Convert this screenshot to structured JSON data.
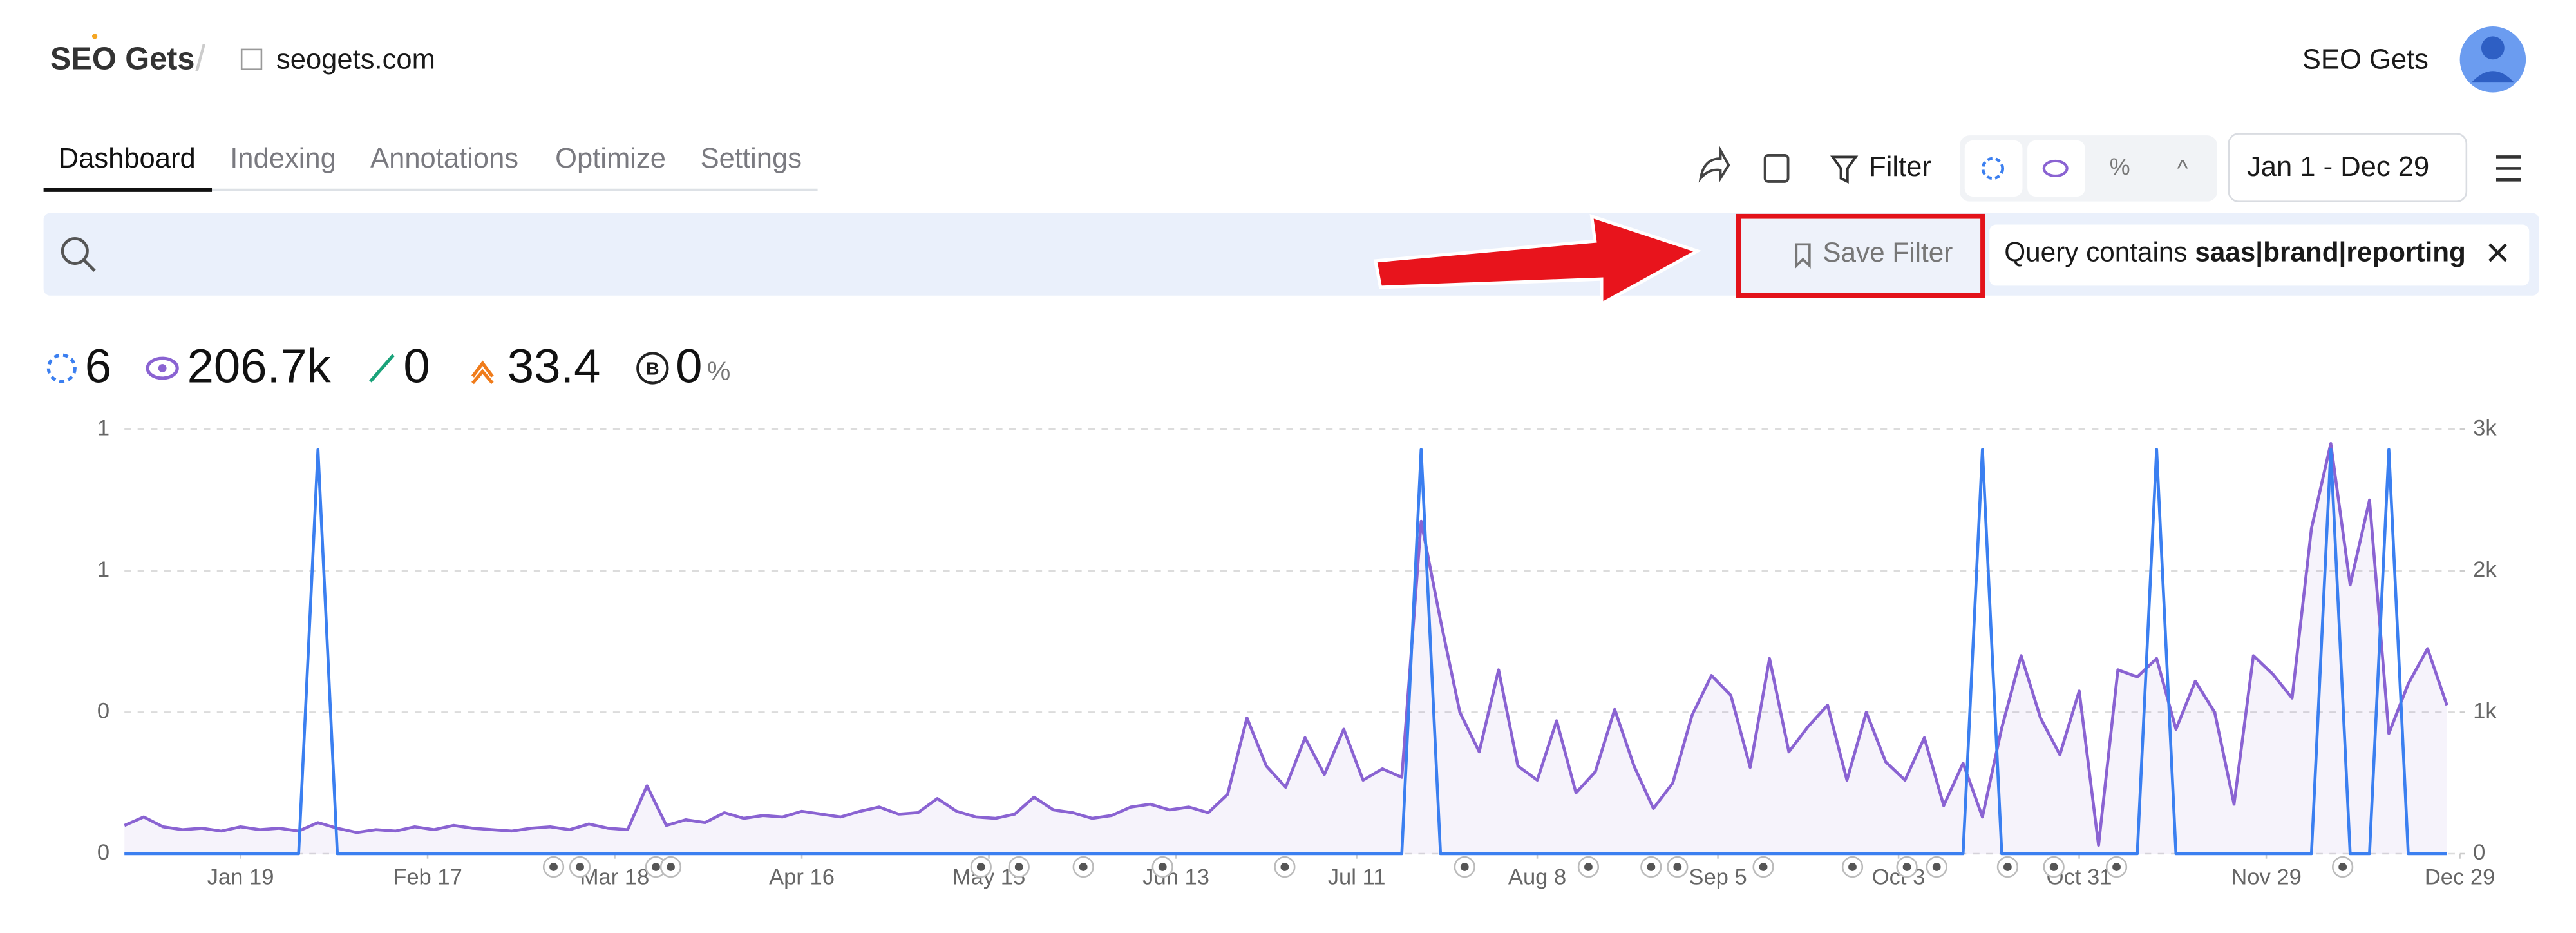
{
  "header": {
    "logo": "SEO Gets",
    "site": "seogets.com",
    "account": "SEO Gets"
  },
  "tabs": [
    "Dashboard",
    "Indexing",
    "Annotations",
    "Optimize",
    "Settings"
  ],
  "toolbar": {
    "filter": "Filter",
    "date_range": "Jan 1 - Dec 29"
  },
  "search": {
    "save_filter": "Save Filter",
    "filter_prefix": "Query contains ",
    "filter_value": "saas|brand|reporting"
  },
  "metrics": {
    "clicks": "6",
    "impressions": "206.7k",
    "ctr": "0",
    "position": "33.4",
    "brand": "0",
    "brand_unit": "%"
  },
  "chart_data": {
    "type": "line",
    "grid": true,
    "x": [
      0,
      3,
      6,
      9,
      12,
      15,
      18,
      21,
      24,
      27,
      30,
      33,
      36,
      39,
      42,
      45,
      48,
      51,
      54,
      57,
      60,
      63,
      66,
      69,
      72,
      75,
      78,
      81,
      84,
      87,
      90,
      93,
      96,
      99,
      102,
      105,
      108,
      111,
      114,
      117,
      120,
      123,
      126,
      129,
      132,
      135,
      138,
      141,
      144,
      147,
      150,
      153,
      156,
      159,
      162,
      165,
      168,
      171,
      174,
      177,
      180,
      183,
      186,
      189,
      192,
      195,
      198,
      201,
      204,
      207,
      210,
      213,
      216,
      219,
      222,
      225,
      228,
      231,
      234,
      237,
      240,
      243,
      246,
      249,
      252,
      255,
      258,
      261,
      264,
      267,
      270,
      273,
      276,
      279,
      282,
      285,
      288,
      291,
      294,
      297,
      300,
      303,
      306,
      309,
      312,
      315,
      318,
      321,
      324,
      327,
      330,
      333,
      336,
      339,
      342,
      345,
      348,
      351,
      354,
      357,
      360
    ],
    "xlim": [
      0,
      362
    ],
    "xticks": [
      {
        "value": 18,
        "label": "Jan 19"
      },
      {
        "value": 47,
        "label": "Feb 17"
      },
      {
        "value": 76,
        "label": "Mar 18"
      },
      {
        "value": 105,
        "label": "Apr 16"
      },
      {
        "value": 134,
        "label": "May 15"
      },
      {
        "value": 163,
        "label": "Jun 13"
      },
      {
        "value": 191,
        "label": "Jul 11"
      },
      {
        "value": 219,
        "label": "Aug 8"
      },
      {
        "value": 247,
        "label": "Sep 5"
      },
      {
        "value": 275,
        "label": "Oct 3"
      },
      {
        "value": 303,
        "label": "Oct 31"
      },
      {
        "value": 332,
        "label": "Nov 29"
      },
      {
        "value": 362,
        "label": "Dec 29"
      }
    ],
    "ylim": [
      0,
      1.05
    ],
    "yticks": [
      0,
      {
        "value": 0.35,
        "label": "0"
      },
      {
        "value": 0.7,
        "label": "1"
      },
      {
        "value": 1.05,
        "label": "1"
      }
    ],
    "y2lim": [
      0,
      3000
    ],
    "y2ticks": [
      0,
      {
        "value": 1000,
        "label": "1k"
      },
      {
        "value": 2000,
        "label": "2k"
      },
      {
        "value": 3000,
        "label": "3k"
      }
    ],
    "series": [
      {
        "color": "#8a63d2",
        "axis": "y2",
        "area": true,
        "values": [
          200,
          260,
          190,
          170,
          180,
          160,
          190,
          170,
          180,
          160,
          220,
          180,
          150,
          170,
          160,
          190,
          170,
          200,
          180,
          170,
          160,
          180,
          190,
          170,
          210,
          180,
          170,
          480,
          200,
          240,
          220,
          290,
          250,
          270,
          260,
          300,
          280,
          260,
          300,
          330,
          280,
          290,
          390,
          300,
          260,
          250,
          280,
          400,
          310,
          290,
          250,
          270,
          330,
          350,
          310,
          330,
          290,
          420,
          960,
          620,
          470,
          820,
          560,
          880,
          520,
          600,
          540,
          2350,
          1650,
          1000,
          720,
          1300,
          620,
          520,
          940,
          430,
          580,
          1020,
          620,
          320,
          500,
          980,
          1260,
          1120,
          610,
          1380,
          720,
          900,
          1050,
          520,
          1000,
          650,
          520,
          820,
          340,
          640,
          260,
          890,
          1400,
          960,
          700,
          1150,
          60,
          1300,
          1250,
          1380,
          880,
          1220,
          1000,
          350,
          1400,
          1270,
          1100,
          2300,
          2900,
          1900,
          2500,
          850,
          1200,
          1450,
          1050
        ]
      },
      {
        "color": "#3b7ff0",
        "axis": "y",
        "area": false,
        "values": [
          0,
          0,
          0,
          0,
          0,
          0,
          0,
          0,
          0,
          0,
          1,
          0,
          0,
          0,
          0,
          0,
          0,
          0,
          0,
          0,
          0,
          0,
          0,
          0,
          0,
          0,
          0,
          0,
          0,
          0,
          0,
          0,
          0,
          0,
          0,
          0,
          0,
          0,
          0,
          0,
          0,
          0,
          0,
          0,
          0,
          0,
          0,
          0,
          0,
          0,
          0,
          0,
          0,
          0,
          0,
          0,
          0,
          0,
          0,
          0,
          0,
          0,
          0,
          0,
          0,
          0,
          0,
          1,
          0,
          0,
          0,
          0,
          0,
          0,
          0,
          0,
          0,
          0,
          0,
          0,
          0,
          0,
          0,
          0,
          0,
          0,
          0,
          0,
          0,
          0,
          0,
          0,
          0,
          0,
          0,
          0,
          1,
          0,
          0,
          0,
          0,
          0,
          0,
          0,
          0,
          1,
          0,
          0,
          0,
          0,
          0,
          0,
          0,
          0,
          1,
          0,
          0,
          1,
          0,
          0,
          0
        ]
      }
    ]
  }
}
